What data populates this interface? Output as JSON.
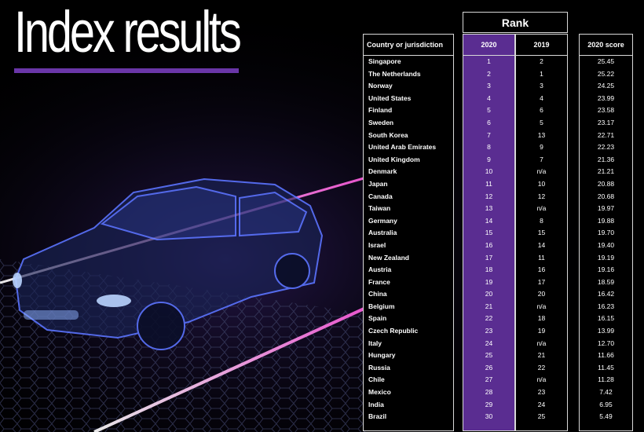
{
  "title": "Index results",
  "table": {
    "rank_header": "Rank",
    "headers": {
      "country": "Country or jurisdiction",
      "rank_2020": "2020",
      "rank_2019": "2019",
      "score": "2020 score"
    },
    "rows": [
      {
        "country": "Singapore",
        "rank_2020": "1",
        "rank_2019": "2",
        "score": "25.45"
      },
      {
        "country": "The Netherlands",
        "rank_2020": "2",
        "rank_2019": "1",
        "score": "25.22"
      },
      {
        "country": "Norway",
        "rank_2020": "3",
        "rank_2019": "3",
        "score": "24.25"
      },
      {
        "country": "United States",
        "rank_2020": "4",
        "rank_2019": "4",
        "score": "23.99"
      },
      {
        "country": "Finland",
        "rank_2020": "5",
        "rank_2019": "6",
        "score": "23.58"
      },
      {
        "country": "Sweden",
        "rank_2020": "6",
        "rank_2019": "5",
        "score": "23.17"
      },
      {
        "country": "South Korea",
        "rank_2020": "7",
        "rank_2019": "13",
        "score": "22.71"
      },
      {
        "country": "United Arab Emirates",
        "rank_2020": "8",
        "rank_2019": "9",
        "score": "22.23"
      },
      {
        "country": "United Kingdom",
        "rank_2020": "9",
        "rank_2019": "7",
        "score": "21.36"
      },
      {
        "country": "Denmark",
        "rank_2020": "10",
        "rank_2019": "n/a",
        "score": "21.21"
      },
      {
        "country": "Japan",
        "rank_2020": "11",
        "rank_2019": "10",
        "score": "20.88"
      },
      {
        "country": "Canada",
        "rank_2020": "12",
        "rank_2019": "12",
        "score": "20.68"
      },
      {
        "country": "Taiwan",
        "rank_2020": "13",
        "rank_2019": "n/a",
        "score": "19.97"
      },
      {
        "country": "Germany",
        "rank_2020": "14",
        "rank_2019": "8",
        "score": "19.88"
      },
      {
        "country": "Australia",
        "rank_2020": "15",
        "rank_2019": "15",
        "score": "19.70"
      },
      {
        "country": "Israel",
        "rank_2020": "16",
        "rank_2019": "14",
        "score": "19.40"
      },
      {
        "country": "New Zealand",
        "rank_2020": "17",
        "rank_2019": "11",
        "score": "19.19"
      },
      {
        "country": "Austria",
        "rank_2020": "18",
        "rank_2019": "16",
        "score": "19.16"
      },
      {
        "country": "France",
        "rank_2020": "19",
        "rank_2019": "17",
        "score": "18.59"
      },
      {
        "country": "China",
        "rank_2020": "20",
        "rank_2019": "20",
        "score": "16.42"
      },
      {
        "country": "Belgium",
        "rank_2020": "21",
        "rank_2019": "n/a",
        "score": "16.23"
      },
      {
        "country": "Spain",
        "rank_2020": "22",
        "rank_2019": "18",
        "score": "16.15"
      },
      {
        "country": "Czech Republic",
        "rank_2020": "23",
        "rank_2019": "19",
        "score": "13.99"
      },
      {
        "country": "Italy",
        "rank_2020": "24",
        "rank_2019": "n/a",
        "score": "12.70"
      },
      {
        "country": "Hungary",
        "rank_2020": "25",
        "rank_2019": "21",
        "score": "11.66"
      },
      {
        "country": "Russia",
        "rank_2020": "26",
        "rank_2019": "22",
        "score": "11.45"
      },
      {
        "country": "Chile",
        "rank_2020": "27",
        "rank_2019": "n/a",
        "score": "11.28"
      },
      {
        "country": "Mexico",
        "rank_2020": "28",
        "rank_2019": "23",
        "score": "7.42"
      },
      {
        "country": "India",
        "rank_2020": "29",
        "rank_2019": "24",
        "score": "6.95"
      },
      {
        "country": "Brazil",
        "rank_2020": "30",
        "rank_2019": "25",
        "score": "5.49"
      }
    ]
  },
  "colors": {
    "accent": "#5a2d91",
    "rule": "#6a36a8",
    "background": "#000000",
    "text": "#ffffff",
    "glow": "#ff4fd8",
    "car": "#3a4fb8"
  }
}
